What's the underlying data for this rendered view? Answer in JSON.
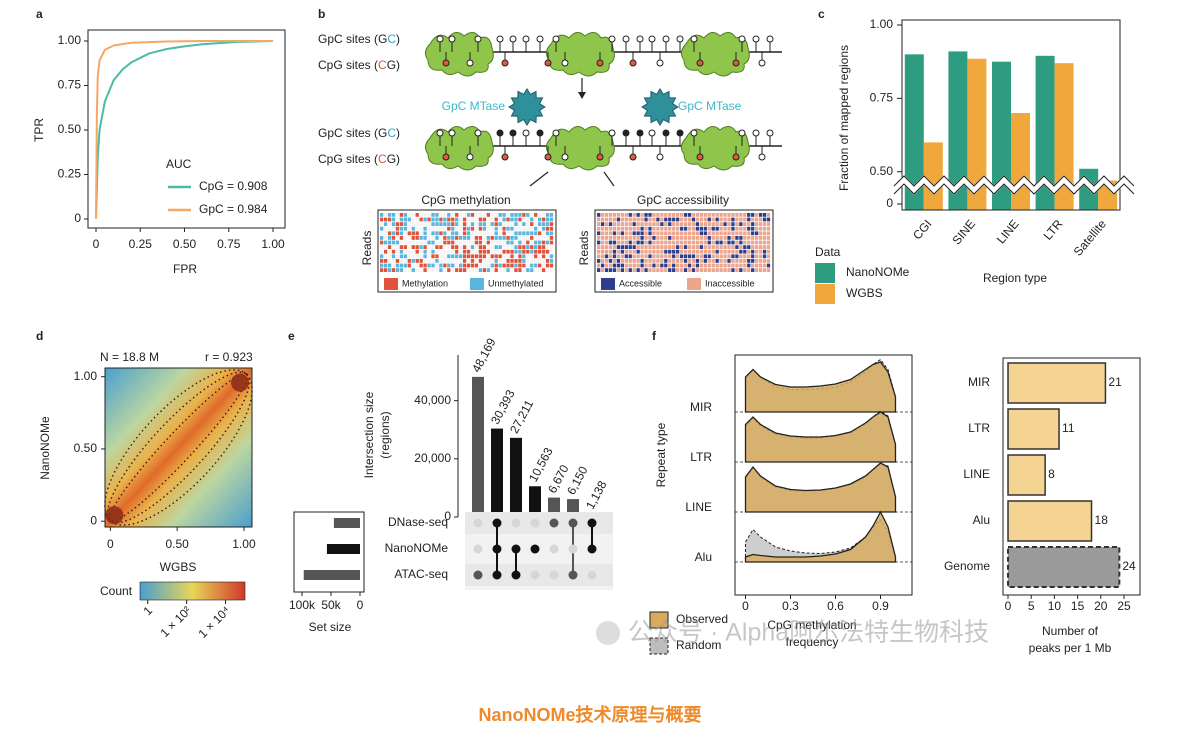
{
  "chart_data": [
    {
      "type": "line",
      "panel_label": "a",
      "xlabel": "FPR",
      "ylabel": "TPR",
      "xlim": [
        0,
        1
      ],
      "ylim": [
        0,
        1
      ],
      "xticks": [
        0,
        0.25,
        {
          "value": 0.5,
          "label": "0.50"
        },
        0.75,
        {
          "value": 1,
          "label": "1.00"
        }
      ],
      "yticks": [
        0,
        0.25,
        {
          "value": 0.5,
          "label": "0.50"
        },
        0.75,
        {
          "value": 1,
          "label": "1.00"
        }
      ],
      "legend_title": "AUC",
      "series": [
        {
          "name": "CpG = 0.908",
          "color": "#4bbba4",
          "x": [
            0,
            0.01,
            0.02,
            0.05,
            0.1,
            0.15,
            0.2,
            0.3,
            0.4,
            0.5,
            0.6,
            0.8,
            1
          ],
          "values": [
            0,
            0.35,
            0.5,
            0.66,
            0.78,
            0.84,
            0.88,
            0.93,
            0.955,
            0.97,
            0.982,
            0.995,
            1
          ]
        },
        {
          "name": "GpC = 0.984",
          "color": "#f5a863",
          "x": [
            0,
            0.005,
            0.01,
            0.02,
            0.05,
            0.1,
            0.2,
            0.4,
            0.6,
            1
          ],
          "values": [
            0,
            0.6,
            0.8,
            0.89,
            0.95,
            0.975,
            0.99,
            0.997,
            1,
            1
          ]
        }
      ]
    },
    {
      "type": "bar",
      "panel_label": "c",
      "ylabel": "Fraction of mapped regions",
      "xlabel": "Region type",
      "categories": [
        "CGI",
        "SINE",
        "LINE",
        "LTR",
        "Satellite"
      ],
      "axis_break": true,
      "ylim": [
        0.39,
        1
      ],
      "yticks": [
        {
          "value": 0,
          "label": "0"
        },
        {
          "value": 0.5,
          "label": "0.50"
        },
        0.75,
        {
          "value": 1,
          "label": "1.00"
        }
      ],
      "legend_title": "Data",
      "series": [
        {
          "name": "NanoNOMe",
          "color": "#2e9c80",
          "values": [
            0.9,
            0.91,
            0.875,
            0.895,
            0.51
          ]
        },
        {
          "name": "WGBS",
          "color": "#f0a83c",
          "values": [
            0.6,
            0.885,
            0.7,
            0.87,
            0.47
          ]
        }
      ]
    },
    {
      "type": "heatmap",
      "panel_label": "d",
      "annotations": [
        "N = 18.8 M",
        "r = 0.923"
      ],
      "xlabel": "WGBS",
      "ylabel": "NanoNOMe",
      "xlim": [
        -0.04,
        1.06
      ],
      "ylim": [
        -0.04,
        1.06
      ],
      "xticks": [
        0,
        {
          "value": 0.5,
          "label": "0.50"
        },
        {
          "value": 1,
          "label": "1.00"
        }
      ],
      "yticks": [
        0,
        {
          "value": 0.5,
          "label": "0.50"
        },
        {
          "value": 1,
          "label": "1.00"
        }
      ],
      "colorbar_label": "Count",
      "colorbar_log": true,
      "clim": [
        0.4,
        100000
      ],
      "cticks": [
        1,
        {
          "value": 100,
          "label": "1 × 10²"
        },
        {
          "value": 10000,
          "label": "1 × 10⁴"
        }
      ]
    },
    {
      "type": "upset",
      "panel_label": "e",
      "ylabel": [
        "Intersection size",
        "(regions)"
      ],
      "values": [
        48169,
        30393,
        27211,
        10563,
        6670,
        6150,
        1138
      ],
      "value_labels": [
        "48,169",
        "30,393",
        "27,211",
        "10,563",
        "6,670",
        "6,150",
        "1,138"
      ],
      "colors": [
        "#555555",
        "#111111",
        "#111111",
        "#111111",
        "#555555",
        "#555555",
        "#111111"
      ],
      "ylim": [
        0,
        55000
      ],
      "yticks": [
        0,
        {
          "value": 20000,
          "label": "20,000"
        },
        {
          "value": 40000,
          "label": "40,000"
        }
      ],
      "sets": [
        "DNase-seq",
        "NanoNOMe",
        "ATAC-seq"
      ],
      "set_sizes": [
        45000,
        57000,
        97000
      ],
      "set_size_xlim": [
        0,
        100000
      ],
      "set_size_reversed": true,
      "set_size_ticks": [
        {
          "value": 100000,
          "label": "100k"
        },
        {
          "value": 50000,
          "label": "50k"
        },
        0
      ],
      "set_size_label": "Set size",
      "memberships": [
        [
          0,
          0,
          1
        ],
        [
          1,
          1,
          1
        ],
        [
          0,
          1,
          1
        ],
        [
          0,
          1,
          0
        ],
        [
          1,
          0,
          0
        ],
        [
          1,
          0,
          1
        ],
        [
          1,
          1,
          0
        ]
      ]
    },
    {
      "type": "ridge",
      "panel_label": "f",
      "ylabel": "Repeat type",
      "xlabel": [
        "CpG methylation",
        "frequency"
      ],
      "categories": [
        "MIR",
        "LTR",
        "LINE",
        "Alu"
      ],
      "xlim": [
        -0.07,
        1.11
      ],
      "xticks": [
        0,
        0.3,
        0.6,
        0.9
      ],
      "x": [
        0,
        0.05,
        0.1,
        0.2,
        0.3,
        0.4,
        0.5,
        0.6,
        0.7,
        0.8,
        0.85,
        0.9,
        0.95,
        1.0
      ],
      "series": [
        {
          "name": "Random",
          "color": "#bdbdbd",
          "values": [
            [
              0.7,
              0.85,
              0.7,
              0.5,
              0.45,
              0.45,
              0.47,
              0.5,
              0.6,
              0.8,
              0.95,
              1.05,
              0.85,
              0.3
            ],
            [
              0.72,
              0.88,
              0.72,
              0.55,
              0.5,
              0.48,
              0.48,
              0.52,
              0.58,
              0.76,
              0.9,
              1.02,
              0.92,
              0.35
            ],
            [
              0.68,
              0.88,
              0.7,
              0.5,
              0.43,
              0.42,
              0.43,
              0.47,
              0.55,
              0.7,
              0.84,
              0.96,
              0.92,
              0.3
            ],
            [
              0.4,
              0.65,
              0.5,
              0.3,
              0.22,
              0.18,
              0.17,
              0.2,
              0.28,
              0.5,
              0.7,
              0.85,
              0.6,
              0.1
            ]
          ]
        },
        {
          "name": "Observed",
          "color": "#d7ab5f",
          "values": [
            [
              0.7,
              0.85,
              0.7,
              0.55,
              0.5,
              0.5,
              0.52,
              0.56,
              0.65,
              0.85,
              0.95,
              1.0,
              0.8,
              0.3
            ],
            [
              0.75,
              0.9,
              0.75,
              0.58,
              0.52,
              0.5,
              0.5,
              0.53,
              0.6,
              0.78,
              0.9,
              1.0,
              0.9,
              0.35
            ],
            [
              0.7,
              0.9,
              0.72,
              0.52,
              0.45,
              0.43,
              0.44,
              0.48,
              0.56,
              0.72,
              0.85,
              0.98,
              0.9,
              0.3
            ],
            [
              0.1,
              0.15,
              0.13,
              0.1,
              0.1,
              0.1,
              0.12,
              0.16,
              0.25,
              0.5,
              0.72,
              1.0,
              0.7,
              0.1
            ]
          ]
        }
      ]
    },
    {
      "type": "hbar",
      "xlabel": [
        "Number of",
        "peaks per 1 Mb"
      ],
      "categories": [
        "MIR",
        "LTR",
        "LINE",
        "Alu",
        "Genome"
      ],
      "values": [
        21,
        11,
        8,
        18,
        24
      ],
      "colors": [
        "#f5d393",
        "#f5d393",
        "#f5d393",
        "#f5d393",
        "#9a9a9a"
      ],
      "xlim": [
        -1.08,
        28.45
      ],
      "xticks": [
        0,
        5,
        10,
        15,
        20,
        25
      ]
    }
  ],
  "diagram_b": {
    "label": "b",
    "site_labels": [
      [
        "GpC sites (G",
        "C",
        ")"
      ],
      [
        "CpG sites (",
        "C",
        "G)"
      ],
      [
        "GpC sites (G",
        "C",
        ")"
      ],
      [
        "CpG sites (",
        "C",
        "G)"
      ]
    ],
    "enzymes": [
      "GpC MTase",
      "GpC MTase"
    ],
    "panels": [
      {
        "title": "CpG methylation",
        "ylabel": "Reads",
        "legend": [
          "Methylation",
          "Unmethylated"
        ]
      },
      {
        "title": "GpC accessibility",
        "ylabel": "Reads",
        "legend": [
          "Accessible",
          "Inaccessible"
        ]
      }
    ]
  },
  "watermark": "公众号 · Alpha阿尔法特生物科技",
  "caption": "NanoNOMe技术原理与概要"
}
